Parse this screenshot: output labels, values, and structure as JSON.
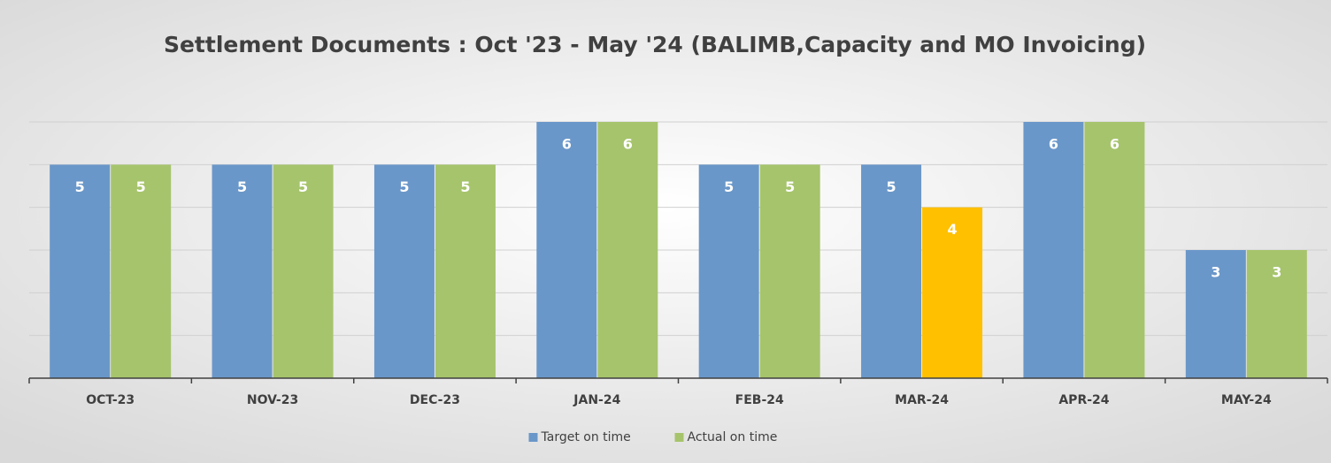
{
  "chart_data": {
    "type": "bar",
    "title": "Settlement Documents : Oct  '23 - May '24 (BALIMB,Capacity and MO Invoicing)",
    "categories": [
      "OCT-23",
      "NOV-23",
      "DEC-23",
      "JAN-24",
      "FEB-24",
      "MAR-24",
      "APR-24",
      "MAY-24"
    ],
    "series": [
      {
        "name": "Target on time",
        "color": "#6a97c9",
        "values": [
          5,
          5,
          5,
          6,
          5,
          5,
          6,
          3
        ]
      },
      {
        "name": "Actual on time",
        "color": "#a6c46c",
        "values": [
          5,
          5,
          5,
          6,
          5,
          4,
          6,
          3
        ],
        "colors": [
          "#a6c46c",
          "#a6c46c",
          "#a6c46c",
          "#a6c46c",
          "#a6c46c",
          "#ffc000",
          "#a6c46c",
          "#a6c46c"
        ]
      }
    ],
    "ylim": [
      0,
      6
    ],
    "yticks": [
      0,
      1,
      2,
      3,
      4,
      5,
      6
    ],
    "grid": true,
    "legend": "bottom"
  }
}
